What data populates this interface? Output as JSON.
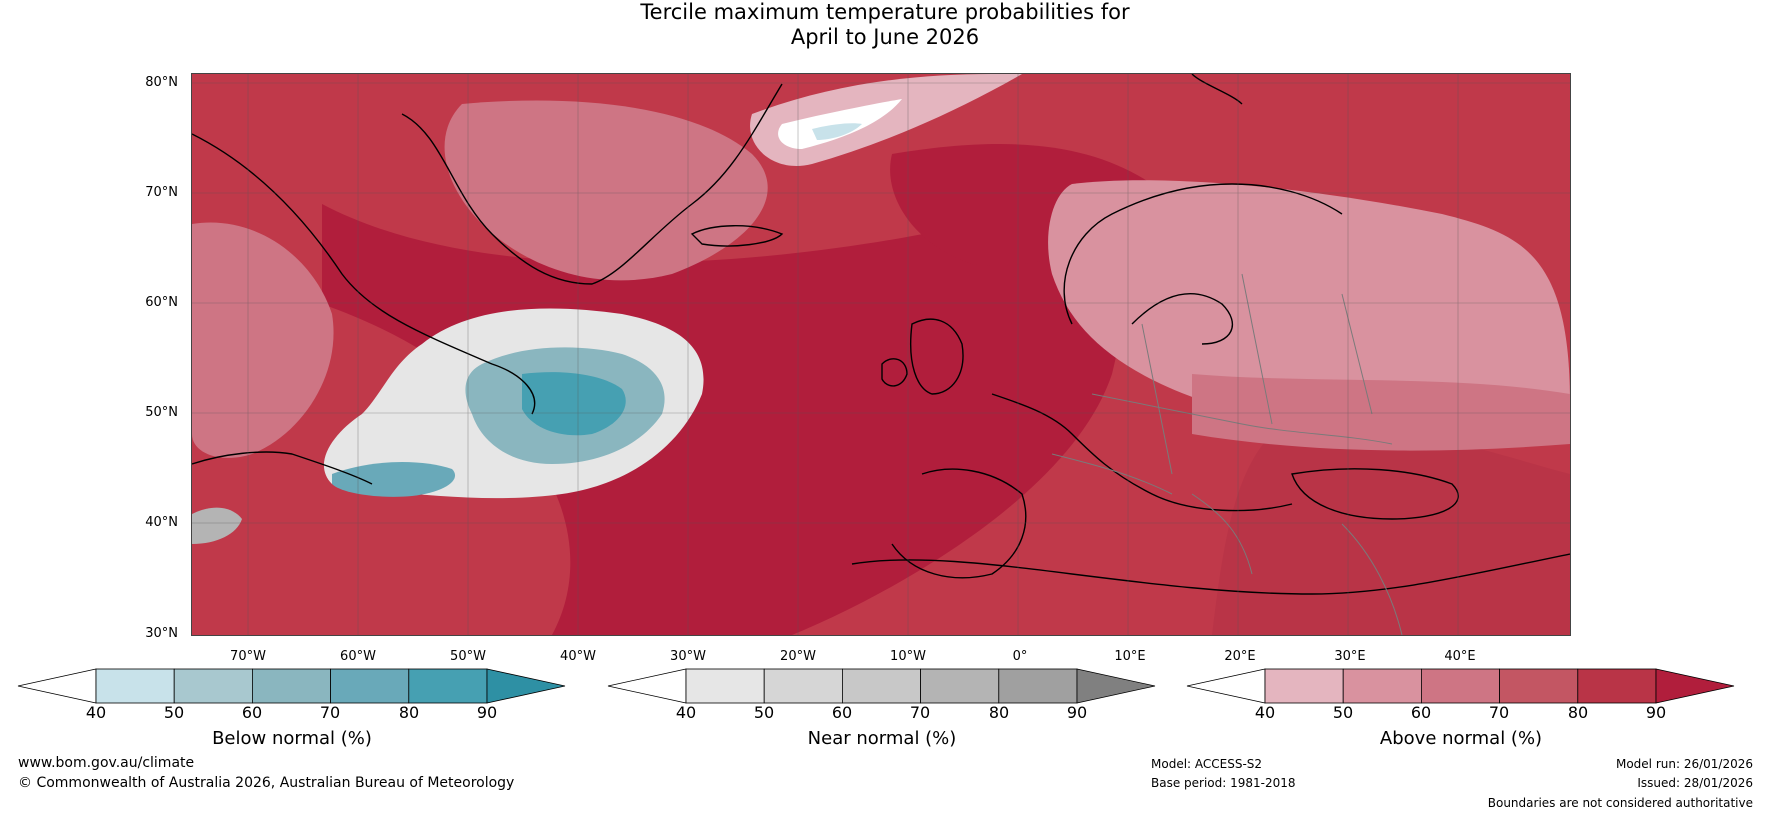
{
  "title": {
    "line1": "Tercile maximum temperature probabilities for",
    "line2": "April to June 2026"
  },
  "map": {
    "lat_labels": [
      "80°N",
      "70°N",
      "60°N",
      "50°N",
      "40°N",
      "30°N"
    ],
    "lon_labels": [
      "70°W",
      "60°W",
      "50°W",
      "40°W",
      "30°W",
      "20°W",
      "10°W",
      "0°",
      "10°E",
      "20°E",
      "30°E",
      "40°E"
    ],
    "background_color": "#c0394a"
  },
  "legends": [
    {
      "key": "below",
      "title": "Below normal (%)",
      "ticks": [
        "40",
        "50",
        "60",
        "70",
        "80",
        "90"
      ],
      "colors": [
        "#ffffff",
        "#c8e2ea",
        "#a8c8cf",
        "#8ab6bf",
        "#69a9b9",
        "#46a0b2",
        "#2e90a4"
      ]
    },
    {
      "key": "near",
      "title": "Near normal (%)",
      "ticks": [
        "40",
        "50",
        "60",
        "70",
        "80",
        "90"
      ],
      "colors": [
        "#ffffff",
        "#e6e6e6",
        "#d6d6d6",
        "#c8c8c8",
        "#b4b4b4",
        "#a0a0a0",
        "#808080"
      ]
    },
    {
      "key": "above",
      "title": "Above normal (%)",
      "ticks": [
        "40",
        "50",
        "60",
        "70",
        "80",
        "90"
      ],
      "colors": [
        "#ffffff",
        "#e4b5bf",
        "#d9929f",
        "#ce7584",
        "#c35663",
        "#b93447",
        "#b11e3c"
      ]
    }
  ],
  "footer": {
    "website": "www.bom.gov.au/climate",
    "copyright": "© Commonwealth of Australia 2026, Australian Bureau of Meteorology",
    "model": "Model: ACCESS-S2",
    "base_period": "Base period: 1981-2018",
    "model_run": "Model run: 26/01/2026",
    "issued": "Issued: 28/01/2026",
    "disclaimer": "Boundaries are not considered authoritative"
  }
}
